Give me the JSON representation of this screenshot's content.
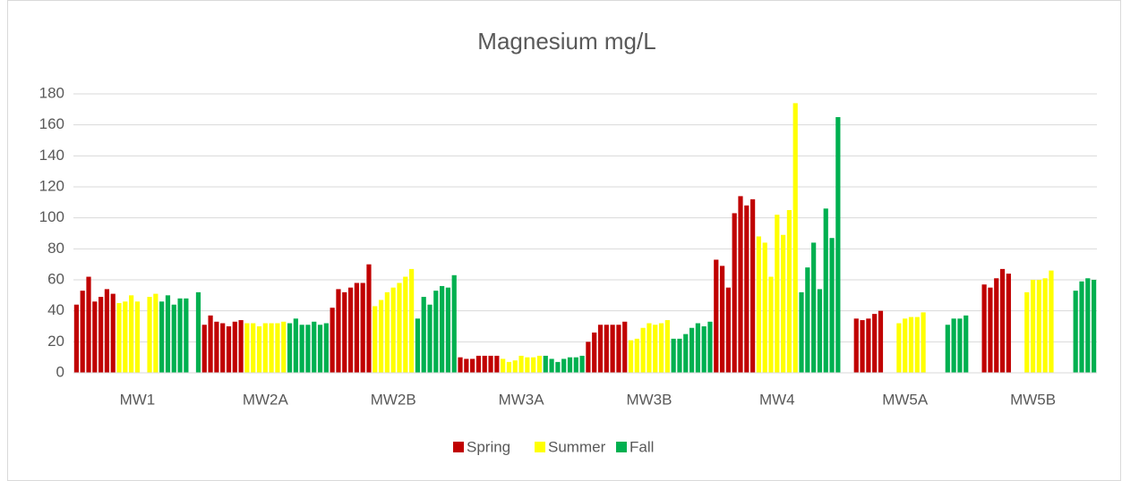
{
  "chart_data": {
    "type": "bar",
    "title": "Magnesium mg/L",
    "categories": [
      "MW1",
      "MW2A",
      "MW2B",
      "MW3A",
      "MW3B",
      "MW4",
      "MW5A",
      "MW5B"
    ],
    "series": [
      {
        "name": "Spring",
        "color": "#c00000",
        "values": [
          [
            44,
            53,
            62,
            46,
            49,
            54,
            51
          ],
          [
            31,
            37,
            33,
            32,
            30,
            33,
            34
          ],
          [
            42,
            54,
            52,
            55,
            58,
            58,
            70
          ],
          [
            10,
            9,
            9,
            11,
            11,
            11,
            11
          ],
          [
            20,
            26,
            31,
            31,
            31,
            31,
            33
          ],
          [
            73,
            69,
            55,
            103,
            114,
            108,
            112
          ],
          [
            null,
            null,
            35,
            34,
            35,
            38,
            40
          ],
          [
            null,
            null,
            57,
            55,
            61,
            67,
            64
          ]
        ]
      },
      {
        "name": "Summer",
        "color": "#ffff00",
        "values": [
          [
            45,
            46,
            50,
            46,
            null,
            49,
            51
          ],
          [
            32,
            32,
            30,
            32,
            32,
            32,
            33
          ],
          [
            43,
            47,
            52,
            55,
            58,
            62,
            67
          ],
          [
            9,
            7,
            8,
            11,
            10,
            10,
            11
          ],
          [
            21,
            22,
            29,
            32,
            31,
            32,
            34
          ],
          [
            88,
            84,
            62,
            102,
            89,
            105,
            174
          ],
          [
            null,
            null,
            32,
            35,
            36,
            36,
            39
          ],
          [
            null,
            null,
            52,
            60,
            60,
            61,
            66
          ]
        ]
      },
      {
        "name": "Fall",
        "color": "#00b050",
        "values": [
          [
            46,
            50,
            44,
            48,
            48,
            null,
            52
          ],
          [
            32,
            35,
            31,
            31,
            33,
            31,
            32
          ],
          [
            35,
            49,
            44,
            53,
            56,
            55,
            63
          ],
          [
            11,
            9,
            7,
            9,
            10,
            10,
            11
          ],
          [
            22,
            22,
            25,
            29,
            32,
            30,
            33
          ],
          [
            52,
            68,
            84,
            54,
            106,
            87,
            165
          ],
          [
            null,
            null,
            null,
            31,
            35,
            35,
            37
          ],
          [
            null,
            null,
            null,
            53,
            59,
            61,
            60
          ]
        ]
      }
    ],
    "ylim": [
      0,
      180
    ],
    "yticks": [
      0,
      20,
      40,
      60,
      80,
      100,
      120,
      140,
      160,
      180
    ],
    "grid": true,
    "legend": "bottom"
  }
}
